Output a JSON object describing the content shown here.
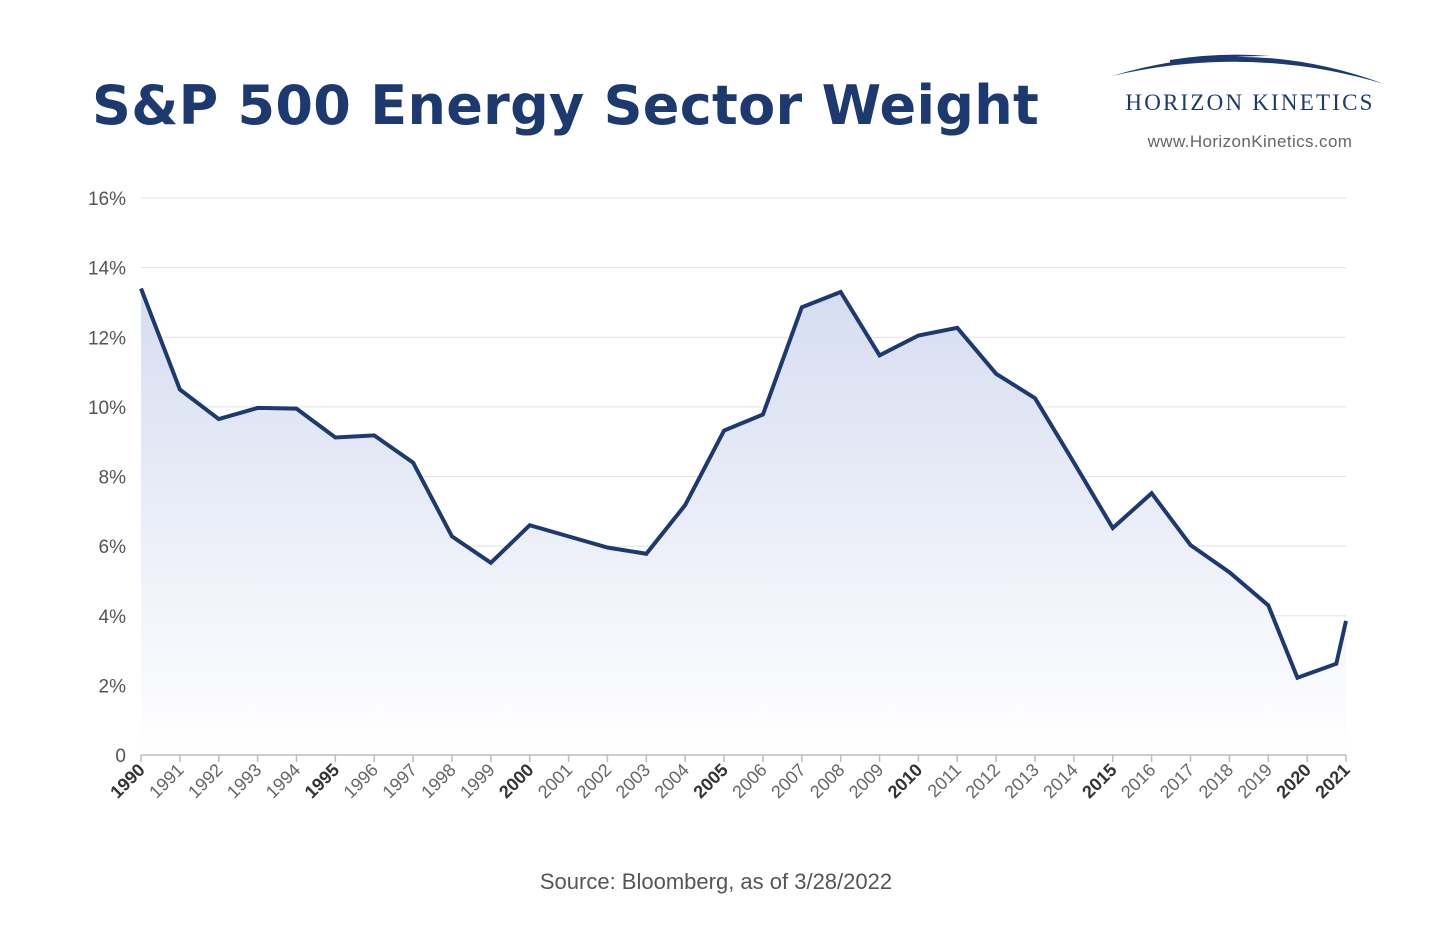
{
  "page": {
    "title": "S&P 500 Energy Sector Weight",
    "source": "Source: Bloomberg, as of 3/28/2022"
  },
  "logo": {
    "name": "HORIZON KINETICS",
    "url": "www.HorizonKinetics.com",
    "icon": "horizon-arc-icon"
  },
  "colors": {
    "title": "#1c3a70",
    "line": "#1c3a70",
    "fill_top": "#d6ddf1",
    "fill_bottom": "#ffffff",
    "grid": "#e2e2e2",
    "axis": "#bdbdbd",
    "tick_text": "#555555"
  },
  "chart_data": {
    "type": "area",
    "title": "S&P 500 Energy Sector Weight",
    "xlabel": "",
    "ylabel": "",
    "ylim": [
      0,
      16
    ],
    "y_ticks": [
      {
        "value": 0,
        "label": "0"
      },
      {
        "value": 2,
        "label": "2%"
      },
      {
        "value": 4,
        "label": "4%"
      },
      {
        "value": 6,
        "label": "6%"
      },
      {
        "value": 8,
        "label": "8%"
      },
      {
        "value": 10,
        "label": "10%"
      },
      {
        "value": 12,
        "label": "12%"
      },
      {
        "value": 14,
        "label": "14%"
      },
      {
        "value": 16,
        "label": "16%"
      }
    ],
    "x_ticks": [
      "1990",
      "1991",
      "1992",
      "1993",
      "1994",
      "1995",
      "1996",
      "1997",
      "1998",
      "1999",
      "2000",
      "2001",
      "2002",
      "2003",
      "2004",
      "2005",
      "2006",
      "2007",
      "2008",
      "2009",
      "2010",
      "2011",
      "2012",
      "2013",
      "2014",
      "2015",
      "2016",
      "2017",
      "2018",
      "2019",
      "2020",
      "2021"
    ],
    "bold_ticks": [
      "1990",
      "1995",
      "2000",
      "2005",
      "2010",
      "2015",
      "2020",
      "2021"
    ],
    "grid": true,
    "series": [
      {
        "name": "Energy Sector Weight",
        "x": [
          1990.0,
          1991.0,
          1992.0,
          1993.0,
          1994.0,
          1995.0,
          1996.0,
          1997.0,
          1998.0,
          1999.0,
          2000.0,
          2001.0,
          2002.0,
          2003.0,
          2004.0,
          2005.0,
          2006.0,
          2007.0,
          2008.0,
          2009.0,
          2010.0,
          2011.0,
          2012.0,
          2013.0,
          2014.0,
          2015.0,
          2016.0,
          2017.0,
          2018.0,
          2019.0,
          2019.75,
          2020.75,
          2021.0
        ],
        "y": [
          13.4,
          10.5,
          9.65,
          9.97,
          9.95,
          9.12,
          9.18,
          8.4,
          6.28,
          5.52,
          6.6,
          6.28,
          5.96,
          5.78,
          7.18,
          9.32,
          9.78,
          12.86,
          13.3,
          11.48,
          12.05,
          12.27,
          10.95,
          10.25,
          8.4,
          6.52,
          7.52,
          6.03,
          5.25,
          4.3,
          2.22,
          2.62,
          3.85
        ]
      }
    ]
  }
}
